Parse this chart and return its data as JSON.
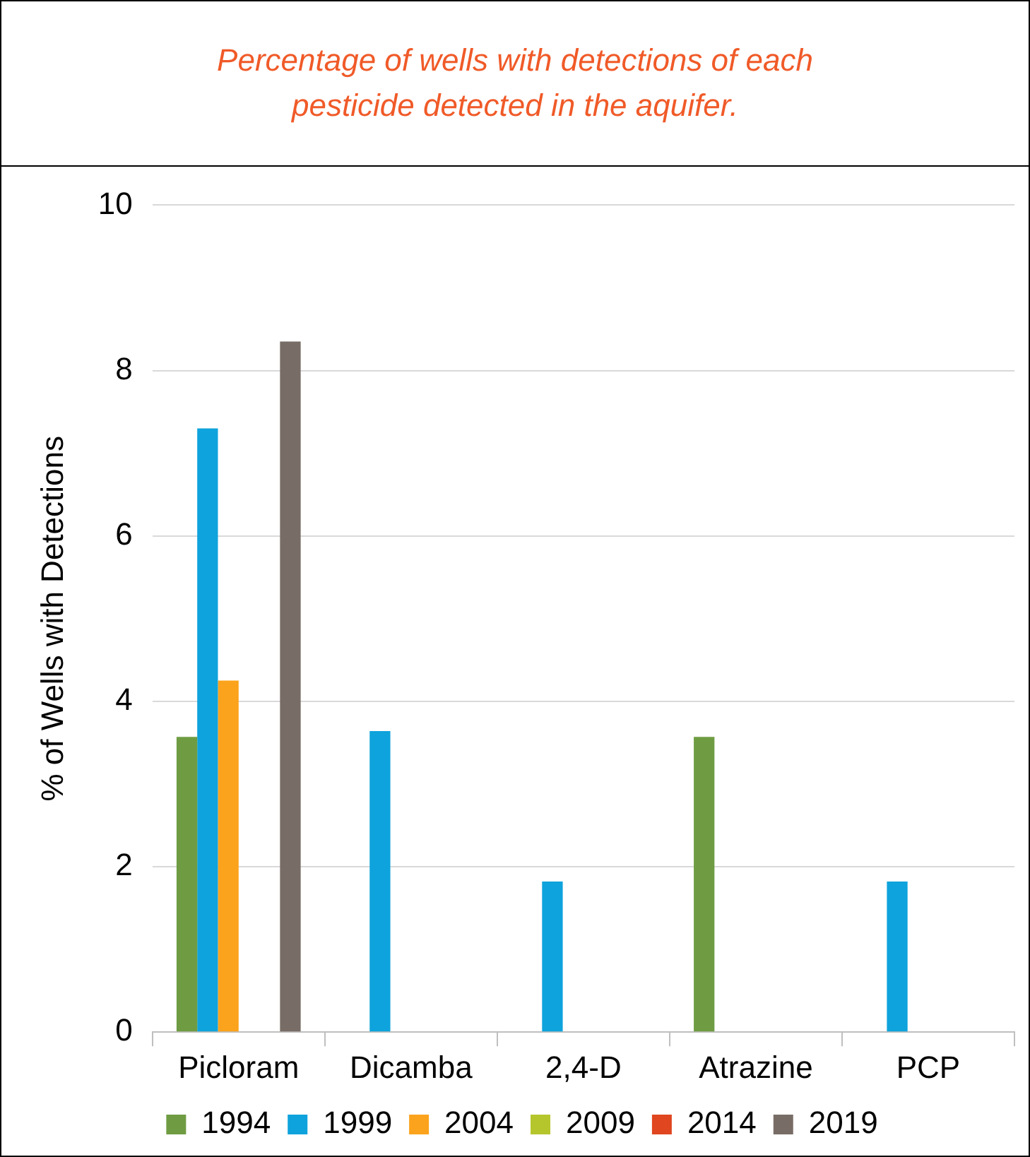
{
  "chart_data": {
    "type": "bar",
    "title": "Percentage of wells with detections of each pesticide detected in the aquifer.",
    "ylabel": "% of Wells with Detections",
    "categories": [
      "Picloram",
      "Dicamba",
      "2,4-D",
      "Atrazine",
      "PCP"
    ],
    "series": [
      {
        "name": "1994",
        "color": "#6f9c42",
        "values": [
          3.57,
          0,
          0,
          3.57,
          0
        ]
      },
      {
        "name": "1999",
        "color": "#0ea3dc",
        "values": [
          7.3,
          3.64,
          1.82,
          0,
          1.82
        ]
      },
      {
        "name": "2004",
        "color": "#fba31c",
        "values": [
          4.25,
          0,
          0,
          0,
          0
        ]
      },
      {
        "name": "2009",
        "color": "#b5c62d",
        "values": [
          0,
          0,
          0,
          0,
          0
        ]
      },
      {
        "name": "2014",
        "color": "#e0461f",
        "values": [
          0,
          0,
          0,
          0,
          0
        ]
      },
      {
        "name": "2019",
        "color": "#786d66",
        "values": [
          8.35,
          0,
          0,
          0,
          0
        ]
      }
    ],
    "ylim": [
      0,
      10
    ],
    "yticks": [
      0,
      2,
      4,
      6,
      8,
      10
    ],
    "grid": "y",
    "legend": "bottom"
  }
}
